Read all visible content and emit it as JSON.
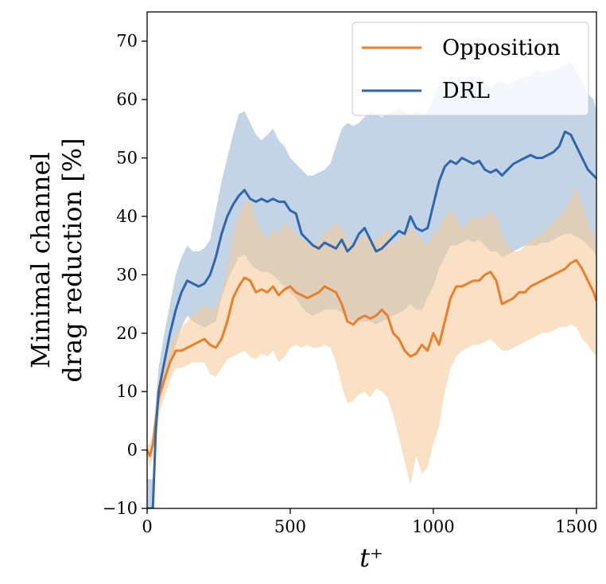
{
  "chart_data": {
    "type": "line",
    "title": "",
    "xlabel": "t⁺",
    "ylabel_lines": [
      "Minimal channel",
      "drag reduction [%]"
    ],
    "xlim": [
      0,
      1570
    ],
    "ylim": [
      -10,
      75
    ],
    "xticks": [
      0,
      500,
      1000,
      1500
    ],
    "yticks": [
      -10,
      0,
      10,
      20,
      30,
      40,
      50,
      60,
      70
    ],
    "ytick_labels": [
      "−10",
      "0",
      "10",
      "20",
      "30",
      "40",
      "50",
      "60",
      "70"
    ],
    "grid": false,
    "legend_position": "top-right",
    "x": [
      0,
      10,
      20,
      30,
      40,
      60,
      80,
      100,
      120,
      140,
      160,
      180,
      200,
      220,
      240,
      260,
      280,
      300,
      320,
      340,
      360,
      380,
      400,
      420,
      440,
      460,
      480,
      500,
      520,
      540,
      560,
      580,
      600,
      620,
      640,
      660,
      680,
      700,
      720,
      740,
      760,
      780,
      800,
      820,
      840,
      860,
      880,
      900,
      920,
      940,
      960,
      980,
      1000,
      1020,
      1040,
      1060,
      1080,
      1100,
      1120,
      1140,
      1160,
      1180,
      1200,
      1220,
      1240,
      1260,
      1280,
      1300,
      1320,
      1340,
      1360,
      1380,
      1400,
      1420,
      1440,
      1460,
      1480,
      1500,
      1520,
      1540,
      1560,
      1570
    ],
    "series": [
      {
        "name": "Opposition",
        "color": "#e87f2d",
        "band_color": "#f5c896",
        "values": [
          0,
          -1,
          1,
          5,
          9,
          12,
          15,
          17,
          17,
          17.5,
          18,
          18.5,
          19,
          18,
          17.5,
          19,
          22,
          26,
          28,
          29.5,
          29,
          27,
          27.5,
          27,
          28,
          26.5,
          27.5,
          28,
          27,
          26.5,
          26,
          26.5,
          27,
          28,
          27.5,
          27,
          25,
          22,
          21.5,
          22.5,
          23,
          22.5,
          23,
          24,
          23,
          20,
          19,
          17,
          16,
          16.5,
          18,
          17,
          20,
          18,
          22,
          26,
          28,
          28,
          28.5,
          29,
          29,
          30,
          30.5,
          29,
          25,
          25.5,
          26,
          27,
          27,
          28,
          28.5,
          29,
          29.5,
          30,
          30.5,
          31,
          32,
          32.5,
          31,
          29,
          27,
          25.5
        ],
        "lower": [
          -1,
          -3,
          -1,
          3,
          6,
          9,
          12,
          14,
          14,
          14.5,
          15,
          15,
          15,
          13,
          12.5,
          14,
          15.5,
          16,
          16.5,
          17,
          16,
          15.5,
          16.5,
          16,
          17,
          15,
          16,
          17.5,
          18,
          17.5,
          18,
          17.5,
          17.5,
          18,
          17.5,
          15,
          11,
          8,
          8.5,
          9.5,
          10,
          9,
          10.5,
          10,
          9,
          6,
          2,
          -2,
          -6,
          -1,
          -4,
          -3,
          1,
          4,
          10,
          14,
          16,
          17,
          17.5,
          18,
          18,
          18.5,
          19,
          18,
          17,
          17,
          17.5,
          18,
          18.5,
          19,
          19.5,
          20,
          20,
          20.5,
          21,
          21,
          21.5,
          21,
          19,
          18,
          16.5,
          16
        ],
        "upper": [
          1,
          1,
          3,
          8,
          12,
          15,
          18,
          20,
          21,
          22,
          23,
          24,
          25,
          24,
          24.5,
          27,
          31,
          37,
          40,
          42,
          43,
          39,
          37.5,
          36,
          38,
          37,
          39,
          38,
          37,
          36,
          35.5,
          35,
          36,
          37,
          38,
          39,
          38,
          36,
          35,
          36,
          37,
          36,
          36,
          37,
          38,
          35,
          36,
          37,
          38,
          37,
          36,
          35,
          37,
          38,
          40,
          41,
          40,
          38,
          39,
          40,
          39.5,
          40,
          41,
          40,
          37,
          35,
          34,
          34,
          35,
          36,
          36.5,
          37,
          38,
          39,
          40,
          41,
          43,
          45,
          42,
          39,
          37,
          35
        ]
      },
      {
        "name": "DRL",
        "color": "#2f66ad",
        "band_color": "#b3c9e0",
        "values": [
          -10,
          -10,
          -10,
          3,
          10,
          15,
          20,
          24,
          27,
          29,
          28.5,
          28,
          28.5,
          30,
          33,
          37,
          40,
          42,
          43.5,
          44.5,
          43,
          42.5,
          43,
          42.5,
          43,
          42.5,
          42.5,
          41,
          40.5,
          37,
          36,
          35,
          34.5,
          35.5,
          35,
          34.5,
          36,
          34,
          35,
          37,
          38,
          36,
          34,
          34.5,
          35.5,
          36.5,
          37.5,
          37,
          40,
          38,
          37.5,
          38,
          42,
          46,
          48.5,
          49.5,
          49,
          50,
          49.5,
          49,
          49.5,
          48,
          47.5,
          48,
          47,
          48,
          49,
          49.5,
          50,
          50.5,
          50,
          50,
          50.5,
          51,
          52,
          54.5,
          54,
          52,
          50,
          48,
          47,
          46.5
        ],
        "lower": [
          -10,
          -10,
          -10,
          1,
          7,
          11,
          15,
          18,
          21,
          23,
          22,
          21.5,
          21,
          21.5,
          22,
          26,
          29,
          31,
          33,
          33.5,
          32,
          31,
          30.5,
          30.5,
          30,
          29,
          28,
          27,
          26,
          24.5,
          23.5,
          23,
          23.5,
          24,
          24,
          24,
          23.5,
          22.5,
          22,
          22,
          22,
          22,
          21.5,
          22,
          22.5,
          23,
          23.5,
          24,
          25,
          24,
          24,
          26,
          28,
          31,
          33,
          35,
          35,
          35.5,
          36,
          35.5,
          36,
          35,
          34,
          34,
          33,
          33.5,
          34,
          34.5,
          35,
          35,
          35,
          35.5,
          35.5,
          36,
          36.5,
          37,
          37,
          36.5,
          36,
          35,
          34,
          33
        ],
        "upper": [
          -5,
          -5,
          -5,
          8,
          14,
          20,
          25,
          30,
          33,
          35,
          34,
          34,
          34.5,
          36,
          41,
          46,
          50,
          54,
          57.5,
          58,
          56,
          54,
          53,
          54,
          55,
          53,
          52,
          50,
          49,
          48,
          47,
          47,
          47.5,
          48,
          49,
          52,
          55,
          56,
          55.5,
          56,
          57,
          58,
          57.5,
          57,
          57.5,
          58,
          58.5,
          58,
          57.5,
          58,
          57.5,
          58,
          60,
          63,
          63,
          64,
          63.5,
          63,
          64,
          64,
          63.5,
          63,
          62,
          63,
          63,
          62.5,
          63,
          63.5,
          64,
          64,
          65,
          64.5,
          65,
          65,
          65.5,
          66,
          66.5,
          65,
          63,
          61,
          60,
          58
        ]
      }
    ]
  }
}
